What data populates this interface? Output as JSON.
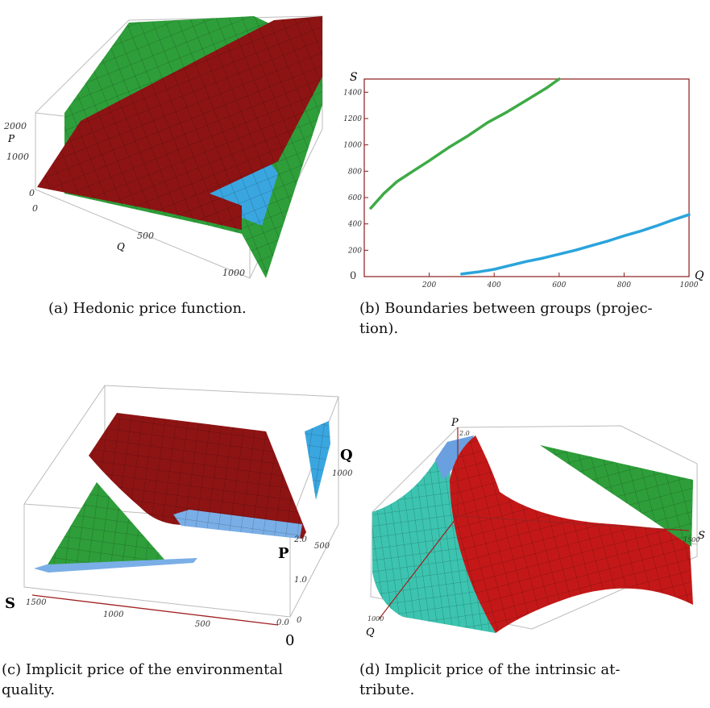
{
  "captions": {
    "a": "(a) Hedonic price function.",
    "b1": "(b) Boundaries between groups (projec-",
    "b2": "tion).",
    "c1": "(c) Implicit price of the environmental",
    "c2": "quality.",
    "d1": "(d) Implicit price of the intrinsic at-",
    "d2": "tribute."
  },
  "colors": {
    "green": "#2e9e3a",
    "red": "#8e1414",
    "blue": "#3aa6e0",
    "teal": "#3cc4b0",
    "lightblue": "#6aa0e0"
  },
  "chart_data": [
    {
      "id": "a",
      "type": "surface3d",
      "axis_labels": {
        "p": "P",
        "q": "Q"
      },
      "p_ticks": [
        "2000",
        "1000",
        "0"
      ],
      "q_ticks": [
        "0",
        "500",
        "1000"
      ]
    },
    {
      "id": "b",
      "type": "line",
      "xlabel": "Q",
      "ylabel": "S",
      "xlim": [
        0,
        1000
      ],
      "ylim": [
        0,
        1500
      ],
      "x_ticks": [
        "200",
        "400",
        "600",
        "800",
        "1000"
      ],
      "y_ticks": [
        "200",
        "400",
        "600",
        "800",
        "1000",
        "1200",
        "1400"
      ],
      "x_origin_label": "0",
      "grid": false,
      "series": [
        {
          "color": "#3eaa46",
          "x": [
            20,
            60,
            100,
            150,
            200,
            260,
            320,
            380,
            440,
            500,
            560,
            600
          ],
          "y": [
            520,
            630,
            720,
            800,
            880,
            980,
            1070,
            1170,
            1250,
            1340,
            1430,
            1500
          ]
        },
        {
          "color": "#2aa4dc",
          "x": [
            300,
            350,
            400,
            450,
            500,
            550,
            600,
            650,
            700,
            750,
            800,
            850,
            900,
            950,
            1000
          ],
          "y": [
            20,
            35,
            55,
            85,
            115,
            140,
            170,
            200,
            235,
            270,
            310,
            345,
            385,
            430,
            470
          ]
        }
      ]
    },
    {
      "id": "c",
      "type": "surface3d",
      "axis_labels": {
        "s": "S",
        "p": "P",
        "q": "Q"
      },
      "s_ticks": [
        "1500",
        "1000",
        "500"
      ],
      "p_ticks": [
        "2.0",
        "1.0",
        "0.0"
      ],
      "q_ticks": [
        "1000",
        "500",
        "0"
      ],
      "origin_label": "0"
    },
    {
      "id": "d",
      "type": "surface3d",
      "axis_labels": {
        "p": "P",
        "s": "S",
        "q": "Q"
      },
      "p_ticks": [
        "2.0"
      ],
      "s_ticks": [
        "1500"
      ],
      "q_ticks": [
        "1000"
      ]
    }
  ]
}
